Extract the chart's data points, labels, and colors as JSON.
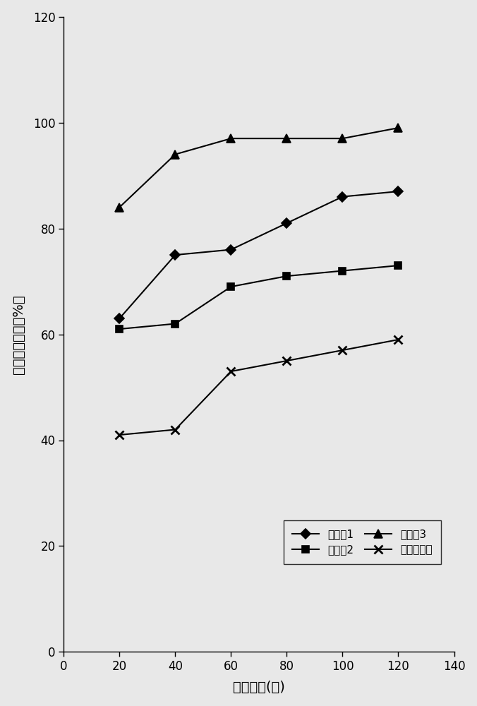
{
  "x": [
    20,
    40,
    60,
    80,
    100,
    120
  ],
  "series": [
    {
      "label": "实施例1",
      "y": [
        63,
        75,
        76,
        81,
        86,
        87
      ],
      "marker": "D",
      "color": "#000000",
      "linestyle": "-"
    },
    {
      "label": "实施例2",
      "y": [
        61,
        62,
        69,
        71,
        72,
        73
      ],
      "marker": "s",
      "color": "#000000",
      "linestyle": "-"
    },
    {
      "label": "实施例3",
      "y": [
        84,
        94,
        97,
        97,
        97,
        99
      ],
      "marker": "^",
      "color": "#000000",
      "linestyle": "-"
    },
    {
      "label": "市售某品牌",
      "y": [
        41,
        42,
        53,
        55,
        57,
        59
      ],
      "marker": "x",
      "color": "#000000",
      "linestyle": "-"
    }
  ],
  "xlabel": "处理时间(月)",
  "ylabel": "絮凝剂溶解率（%）",
  "xlim": [
    0,
    140
  ],
  "ylim": [
    0,
    120
  ],
  "xticks": [
    0,
    20,
    40,
    60,
    80,
    100,
    120,
    140
  ],
  "yticks": [
    0,
    20,
    40,
    60,
    80,
    100,
    120
  ],
  "background_color": "#e8e8e8",
  "figsize": [
    6.76,
    10.0
  ],
  "dpi": 100,
  "legend_ncol": 2,
  "marker_sizes": {
    "D": 7,
    "s": 7,
    "^": 9,
    "x": 9
  }
}
